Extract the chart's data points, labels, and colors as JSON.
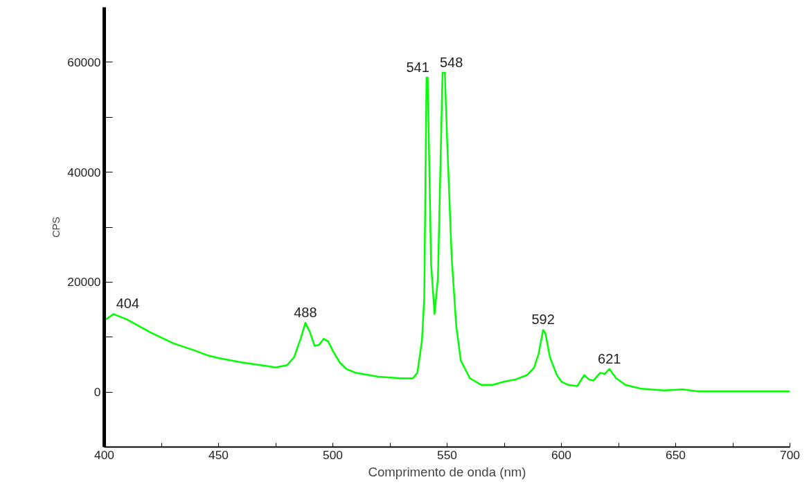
{
  "chart_data": {
    "type": "line",
    "xlabel": "Comprimento de onda (nm)",
    "ylabel": "CPS",
    "x": [
      400,
      404,
      410,
      420,
      430,
      440,
      445,
      450,
      460,
      470,
      475,
      480,
      483,
      486,
      488,
      490,
      492,
      494,
      496,
      498,
      500,
      503,
      506,
      510,
      520,
      530,
      535,
      537,
      539,
      540,
      541,
      541.5,
      543,
      544.5,
      546,
      548,
      549,
      550,
      552,
      554,
      556,
      560,
      565,
      570,
      575,
      580,
      585,
      588,
      590,
      592,
      593,
      595,
      598,
      600,
      603,
      607,
      610,
      612,
      614,
      617,
      619,
      621,
      624,
      628,
      635,
      645,
      653,
      660,
      700
    ],
    "series": [
      {
        "color": "#00ff00",
        "values": [
          13000,
          14200,
          13200,
          10900,
          8900,
          7500,
          6700,
          6200,
          5400,
          4800,
          4500,
          4900,
          6300,
          9800,
          12600,
          10900,
          8400,
          8600,
          9700,
          9200,
          7500,
          5400,
          4200,
          3500,
          2800,
          2500,
          2500,
          3500,
          9400,
          17000,
          57200,
          57200,
          23300,
          14200,
          20800,
          58100,
          58100,
          45900,
          24500,
          12000,
          5700,
          2500,
          1300,
          1300,
          1900,
          2300,
          3100,
          4400,
          6900,
          11300,
          10700,
          6300,
          3100,
          1900,
          1300,
          1100,
          3100,
          2300,
          2100,
          3500,
          3300,
          4200,
          2500,
          1300,
          600,
          300,
          500,
          100,
          100
        ]
      }
    ],
    "xlim": [
      400,
      700
    ],
    "xticks": [
      400,
      {
        "value": 425,
        "label": null
      },
      450,
      {
        "value": 475,
        "label": null
      },
      500,
      {
        "value": 525,
        "label": null
      },
      550,
      {
        "value": 575,
        "label": null
      },
      600,
      {
        "value": 625,
        "label": null
      },
      650,
      {
        "value": 675,
        "label": null
      },
      700
    ],
    "ylim": [
      -10000,
      70000
    ],
    "yticks": [
      0,
      {
        "value": 10000,
        "label": null
      },
      20000,
      {
        "value": 30000,
        "label": null
      },
      40000,
      {
        "value": 50000,
        "label": null
      },
      60000
    ],
    "annotations": [
      {
        "text": "404",
        "x": 404,
        "y": 14200
      },
      {
        "text": "488",
        "x": 488,
        "y": 12600
      },
      {
        "text": "541",
        "x": 541,
        "y": 57200
      },
      {
        "text": "548",
        "x": 548,
        "y": 58100
      },
      {
        "text": "592",
        "x": 592,
        "y": 11300
      },
      {
        "text": "621",
        "x": 621,
        "y": 4200
      }
    ],
    "grid": false,
    "marker": "none",
    "line_style": "solid"
  }
}
